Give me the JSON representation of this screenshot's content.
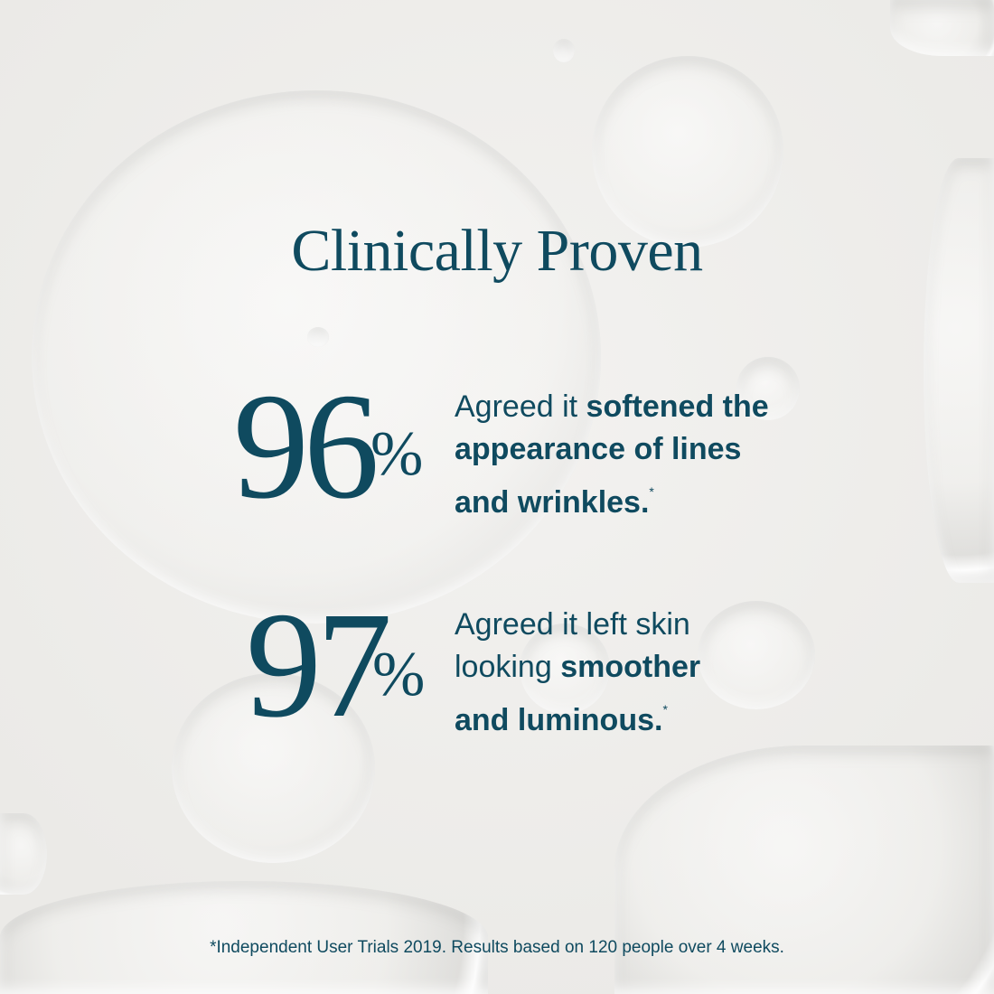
{
  "title": "Clinically Proven",
  "colors": {
    "text": "#0f4a5f",
    "background": "#eeedeb"
  },
  "stats": [
    {
      "number": "96",
      "unit": "%",
      "segments": [
        {
          "text": "Agreed it ",
          "bold": false
        },
        {
          "text": "softened the appearance of lines and wrinkles.",
          "bold": true
        }
      ],
      "footnote_mark": "*"
    },
    {
      "number": "97",
      "unit": "%",
      "segments": [
        {
          "text": "Agreed it left skin looking ",
          "bold": false
        },
        {
          "text": "smoother and luminous.",
          "bold": true
        }
      ],
      "footnote_mark": "*"
    }
  ],
  "footnote": "*Independent User Trials 2019. Results based on 120 people over 4 weeks."
}
